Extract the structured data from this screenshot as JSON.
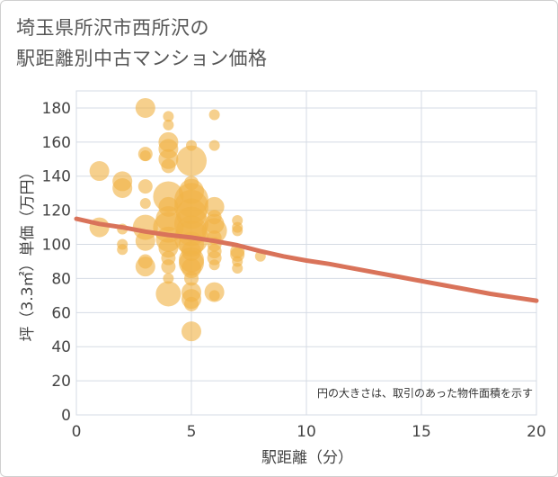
{
  "title_lines": [
    "埼玉県所沢市西所沢の",
    "駅距離別中古マンション価格"
  ],
  "colors": {
    "bubble": "#f0b347",
    "trend": "#d9735a",
    "grid": "#d5dbe4",
    "axis_text": "#444444"
  },
  "chart_data": {
    "type": "scatter",
    "title": "埼玉県所沢市西所沢の駅距離別中古マンション価格",
    "xlabel": "駅距離（分）",
    "ylabel": "坪（3.3㎡）単価（万円）",
    "xlim": [
      0,
      20
    ],
    "ylim": [
      0,
      190
    ],
    "xticks": [
      0,
      5,
      10,
      15,
      20
    ],
    "yticks": [
      0,
      20,
      40,
      60,
      80,
      100,
      120,
      140,
      160,
      180
    ],
    "grid": true,
    "note": "円の大きさは、取引のあった物件面積を示す",
    "points": [
      {
        "x": 1,
        "y": 143,
        "s": 3
      },
      {
        "x": 1,
        "y": 110,
        "s": 3
      },
      {
        "x": 2,
        "y": 137,
        "s": 3
      },
      {
        "x": 2,
        "y": 133,
        "s": 3
      },
      {
        "x": 2,
        "y": 109,
        "s": 1
      },
      {
        "x": 2,
        "y": 100,
        "s": 1
      },
      {
        "x": 2,
        "y": 97,
        "s": 1
      },
      {
        "x": 3,
        "y": 180,
        "s": 3
      },
      {
        "x": 3,
        "y": 153,
        "s": 2
      },
      {
        "x": 3,
        "y": 152,
        "s": 1
      },
      {
        "x": 3,
        "y": 134,
        "s": 2
      },
      {
        "x": 3,
        "y": 124,
        "s": 1
      },
      {
        "x": 3,
        "y": 110,
        "s": 4
      },
      {
        "x": 3,
        "y": 102,
        "s": 3
      },
      {
        "x": 3,
        "y": 90,
        "s": 2
      },
      {
        "x": 3,
        "y": 87,
        "s": 3
      },
      {
        "x": 4,
        "y": 175,
        "s": 1
      },
      {
        "x": 4,
        "y": 170,
        "s": 1
      },
      {
        "x": 4,
        "y": 160,
        "s": 3
      },
      {
        "x": 4,
        "y": 156,
        "s": 3
      },
      {
        "x": 4,
        "y": 150,
        "s": 3
      },
      {
        "x": 4,
        "y": 146,
        "s": 2
      },
      {
        "x": 4,
        "y": 128,
        "s": 5
      },
      {
        "x": 4,
        "y": 122,
        "s": 3
      },
      {
        "x": 4,
        "y": 115,
        "s": 4
      },
      {
        "x": 4,
        "y": 110,
        "s": 5
      },
      {
        "x": 4,
        "y": 103,
        "s": 4
      },
      {
        "x": 4,
        "y": 98,
        "s": 3
      },
      {
        "x": 4,
        "y": 92,
        "s": 2
      },
      {
        "x": 4,
        "y": 87,
        "s": 2
      },
      {
        "x": 4,
        "y": 80,
        "s": 1
      },
      {
        "x": 4,
        "y": 71,
        "s": 4
      },
      {
        "x": 5,
        "y": 158,
        "s": 1
      },
      {
        "x": 5,
        "y": 149,
        "s": 5
      },
      {
        "x": 5,
        "y": 136,
        "s": 2
      },
      {
        "x": 5,
        "y": 131,
        "s": 4
      },
      {
        "x": 5,
        "y": 126,
        "s": 6
      },
      {
        "x": 5,
        "y": 122,
        "s": 6
      },
      {
        "x": 5,
        "y": 118,
        "s": 5
      },
      {
        "x": 5,
        "y": 112,
        "s": 6
      },
      {
        "x": 5,
        "y": 108,
        "s": 5
      },
      {
        "x": 5,
        "y": 104,
        "s": 6
      },
      {
        "x": 5,
        "y": 100,
        "s": 4
      },
      {
        "x": 5,
        "y": 96,
        "s": 3
      },
      {
        "x": 5,
        "y": 91,
        "s": 4
      },
      {
        "x": 5,
        "y": 89,
        "s": 4
      },
      {
        "x": 5,
        "y": 86,
        "s": 3
      },
      {
        "x": 5,
        "y": 80,
        "s": 2
      },
      {
        "x": 5,
        "y": 72,
        "s": 3
      },
      {
        "x": 5,
        "y": 68,
        "s": 3
      },
      {
        "x": 5,
        "y": 65,
        "s": 2
      },
      {
        "x": 5,
        "y": 49,
        "s": 3
      },
      {
        "x": 6,
        "y": 176,
        "s": 1
      },
      {
        "x": 6,
        "y": 158,
        "s": 1
      },
      {
        "x": 6,
        "y": 122,
        "s": 3
      },
      {
        "x": 6,
        "y": 116,
        "s": 2
      },
      {
        "x": 6,
        "y": 112,
        "s": 3
      },
      {
        "x": 6,
        "y": 108,
        "s": 4
      },
      {
        "x": 6,
        "y": 104,
        "s": 2
      },
      {
        "x": 6,
        "y": 100,
        "s": 2
      },
      {
        "x": 6,
        "y": 96,
        "s": 2
      },
      {
        "x": 6,
        "y": 92,
        "s": 2
      },
      {
        "x": 6,
        "y": 88,
        "s": 1
      },
      {
        "x": 6,
        "y": 72,
        "s": 3
      },
      {
        "x": 6,
        "y": 70,
        "s": 1
      },
      {
        "x": 7,
        "y": 114,
        "s": 1
      },
      {
        "x": 7,
        "y": 110,
        "s": 1
      },
      {
        "x": 7,
        "y": 108,
        "s": 1
      },
      {
        "x": 7,
        "y": 96,
        "s": 2
      },
      {
        "x": 7,
        "y": 94,
        "s": 2
      },
      {
        "x": 7,
        "y": 90,
        "s": 1
      },
      {
        "x": 7,
        "y": 86,
        "s": 1
      },
      {
        "x": 8,
        "y": 93,
        "s": 1
      }
    ],
    "trend": {
      "x": [
        0,
        1,
        2,
        3,
        4,
        5,
        6,
        7,
        8,
        9,
        10,
        11,
        12,
        13,
        14,
        15,
        16,
        17,
        18,
        19,
        20
      ],
      "y": [
        115,
        112,
        110,
        107.5,
        105.5,
        104,
        102,
        99.5,
        96,
        93,
        90.5,
        88.5,
        86,
        83.5,
        81,
        78.5,
        76,
        73.5,
        71,
        69,
        67
      ]
    }
  }
}
